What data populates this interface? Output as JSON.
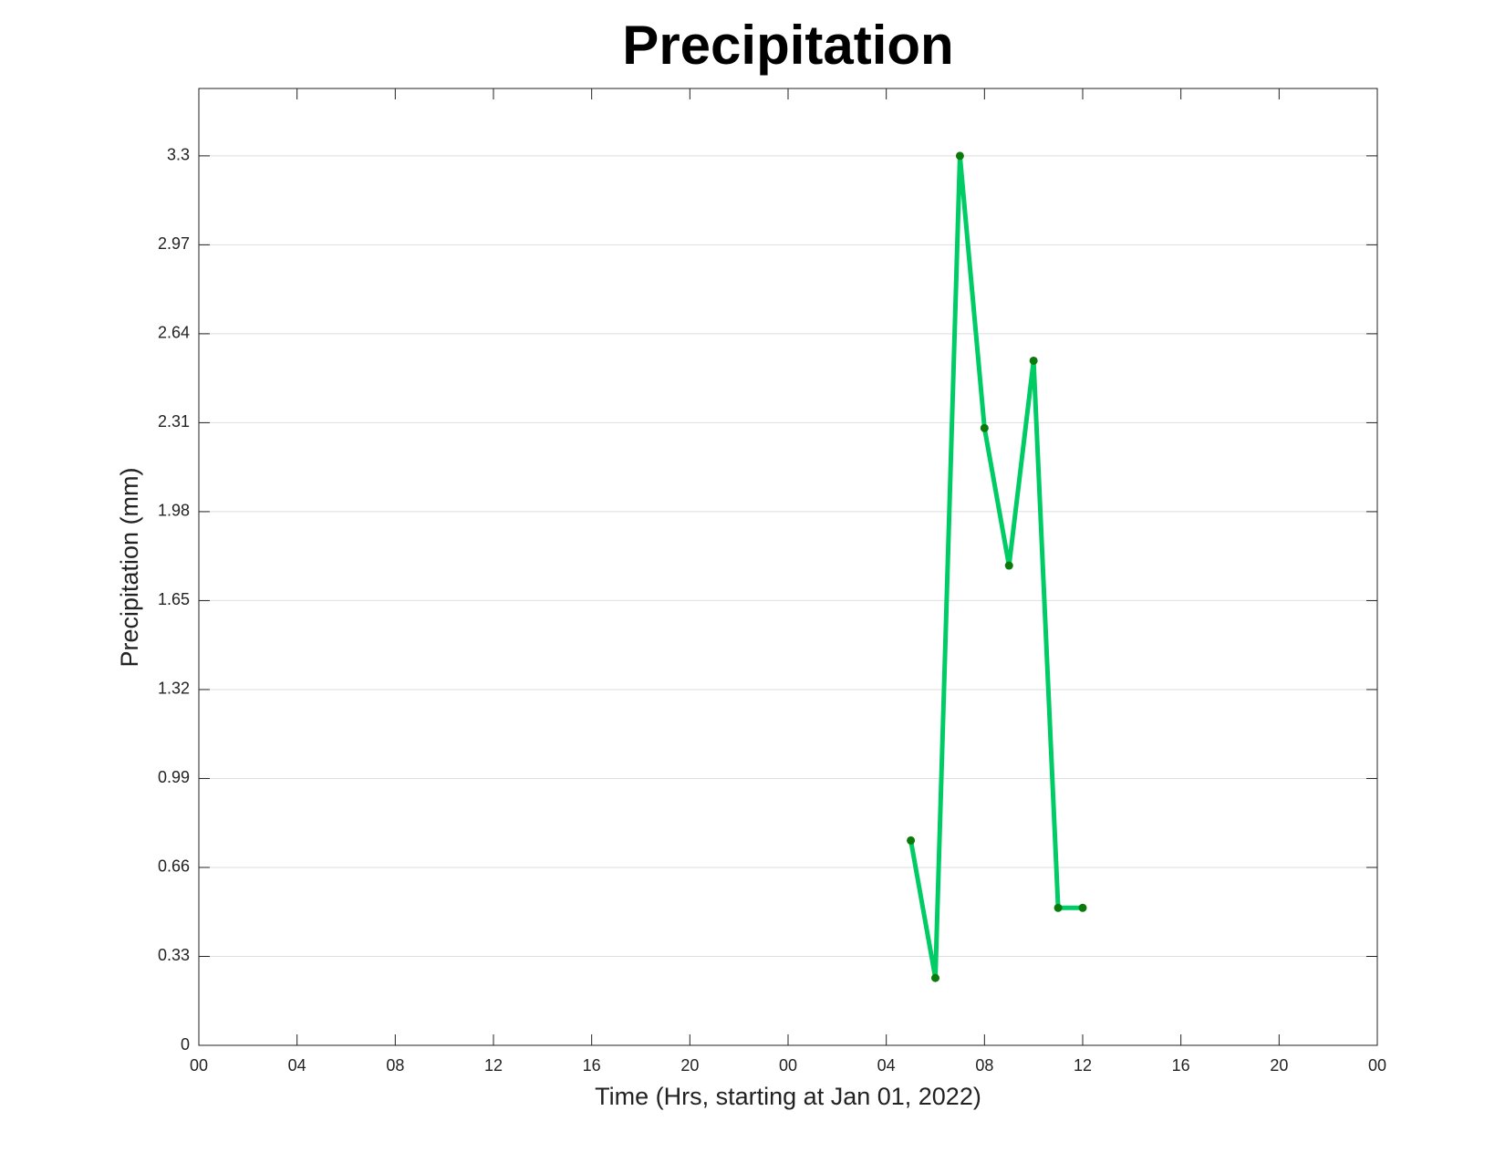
{
  "chart_data": {
    "type": "line",
    "title": "Precipitation",
    "xlabel": "Time (Hrs, starting at Jan 01, 2022)",
    "ylabel": "Precipitation (mm)",
    "x": [
      29,
      30,
      31,
      32,
      33,
      34,
      35,
      36
    ],
    "values": [
      0.76,
      0.25,
      3.3,
      2.29,
      1.78,
      2.54,
      0.51,
      0.51
    ],
    "color": "#00cc66",
    "marker_color": "#0a7a0a",
    "xlim": [
      0,
      48
    ],
    "xticks": [
      {
        "value": 0,
        "label": "00"
      },
      {
        "value": 4,
        "label": "04"
      },
      {
        "value": 8,
        "label": "08"
      },
      {
        "value": 12,
        "label": "12"
      },
      {
        "value": 16,
        "label": "16"
      },
      {
        "value": 20,
        "label": "20"
      },
      {
        "value": 24,
        "label": "00"
      },
      {
        "value": 28,
        "label": "04"
      },
      {
        "value": 32,
        "label": "08"
      },
      {
        "value": 36,
        "label": "12"
      },
      {
        "value": 40,
        "label": "16"
      },
      {
        "value": 44,
        "label": "20"
      },
      {
        "value": 48,
        "label": "00"
      }
    ],
    "ylim": [
      0,
      3.55
    ],
    "yticks": [
      0,
      0.33,
      0.66,
      0.99,
      1.32,
      1.65,
      1.98,
      2.31,
      2.64,
      2.97,
      3.3
    ],
    "grid": true
  }
}
